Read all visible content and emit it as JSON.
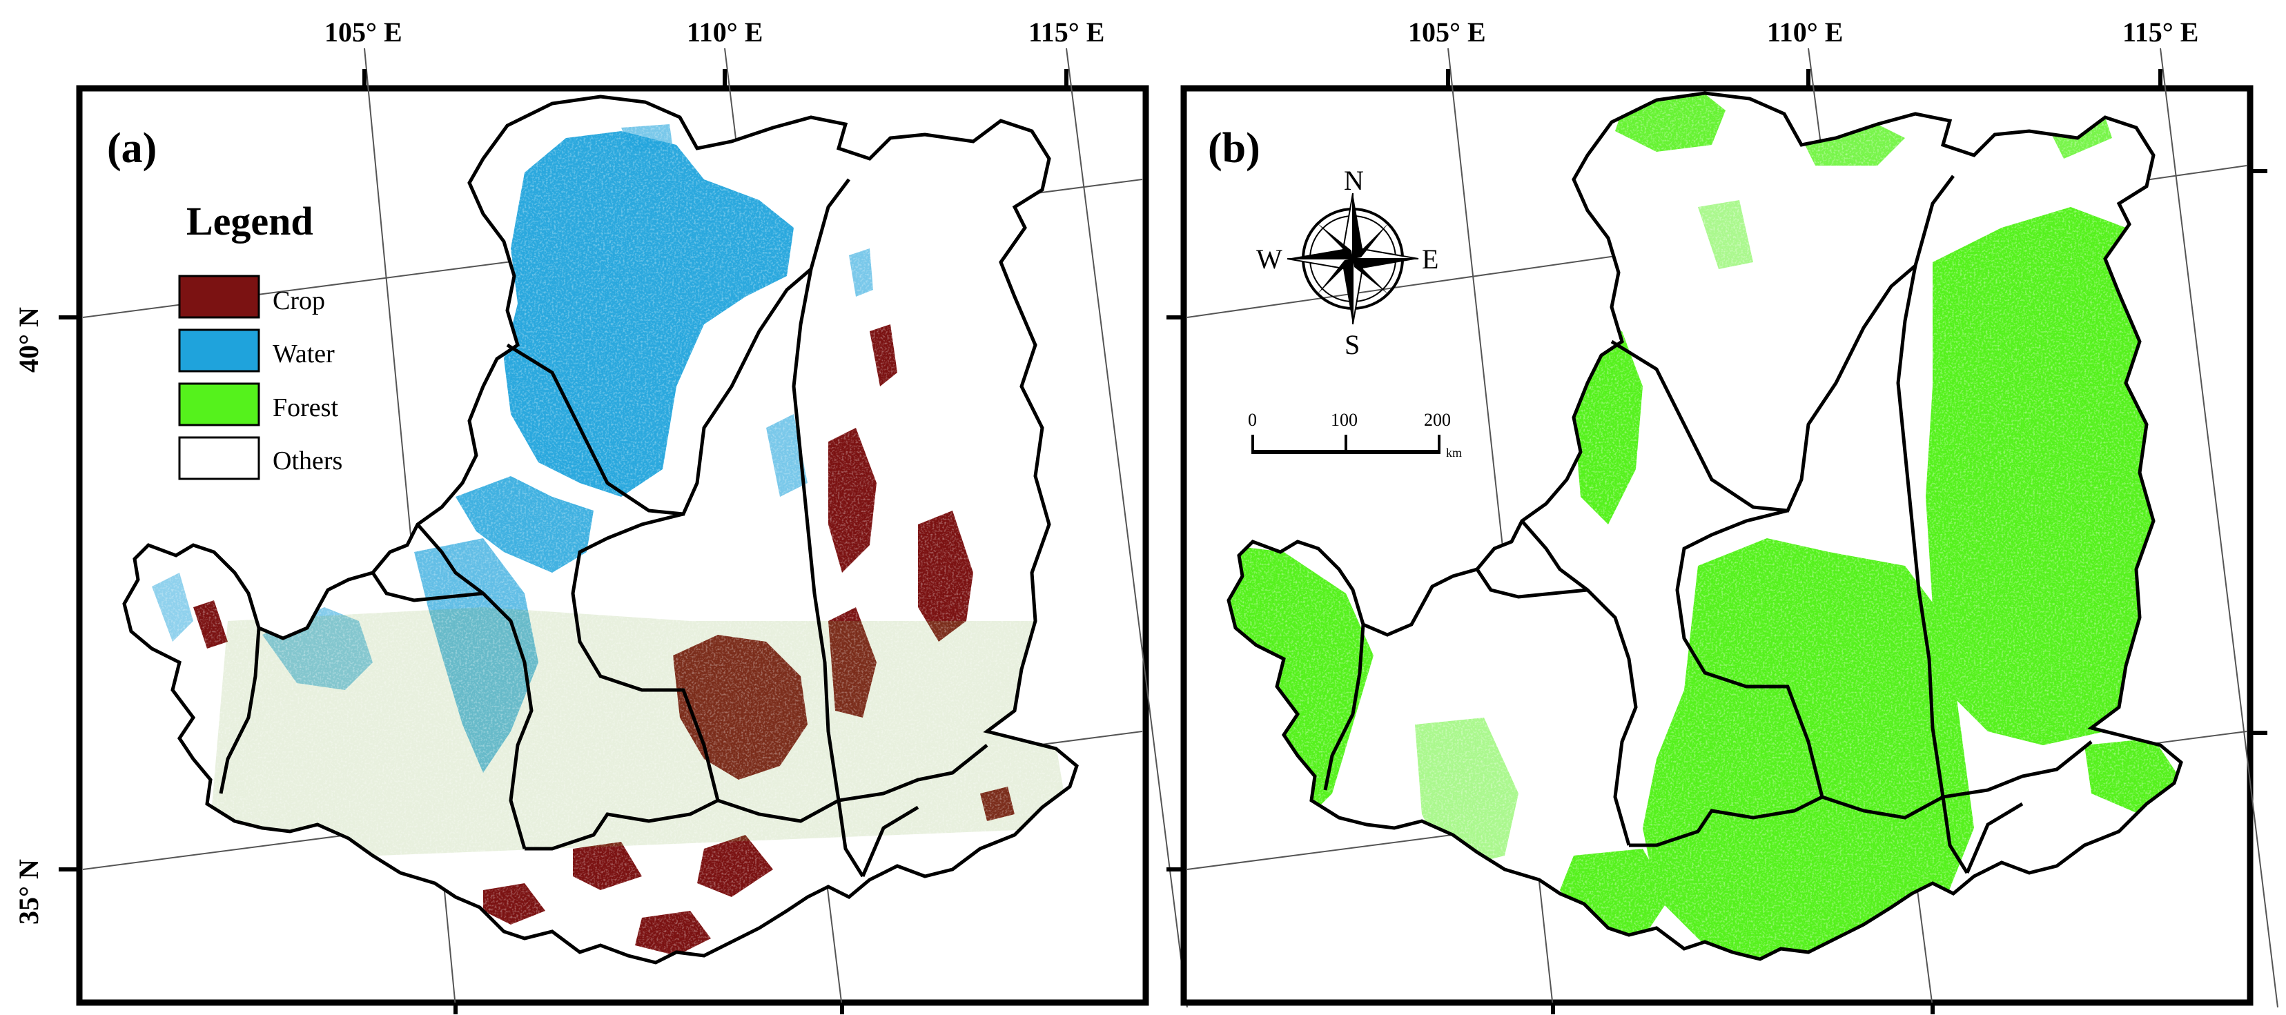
{
  "panel_a": {
    "label": "(a)",
    "lon_labels": [
      "105° E",
      "110° E",
      "115° E"
    ],
    "lat_labels": [
      "40° N",
      "35° N"
    ],
    "legend": {
      "title": "Legend",
      "items": [
        {
          "label": "Crop",
          "color": "#7b1212"
        },
        {
          "label": "Water",
          "color": "#1fa3dc"
        },
        {
          "label": "Forest",
          "color": "#55f21c"
        },
        {
          "label": "Others",
          "color": "#ffffff"
        }
      ]
    }
  },
  "panel_b": {
    "label": "(b)",
    "lon_labels": [
      "105° E",
      "110° E",
      "115° E"
    ],
    "compass": {
      "north": "N",
      "south": "S",
      "east": "E",
      "west": "W"
    },
    "scale_bar": {
      "ticks": [
        "0",
        "100",
        "200"
      ],
      "unit": "km"
    }
  },
  "colors": {
    "crop": "#7b1212",
    "water": "#1fa3dc",
    "forest": "#55f21c",
    "others": "#ffffff",
    "boundary": "#000000"
  }
}
